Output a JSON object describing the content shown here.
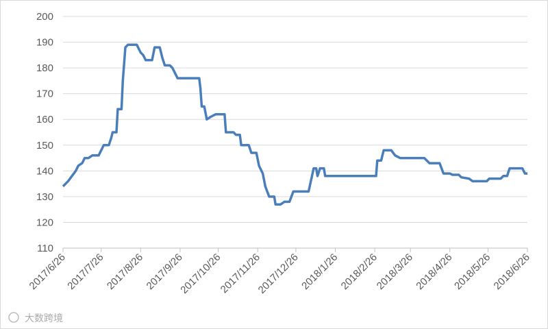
{
  "chart_data": {
    "type": "line",
    "x": [
      "2017/6/26",
      "2017/6/28",
      "2017/6/30",
      "2017/7/3",
      "2017/7/6",
      "2017/7/8",
      "2017/7/11",
      "2017/7/13",
      "2017/7/16",
      "2017/7/19",
      "2017/7/24",
      "2017/7/26",
      "2017/7/28",
      "2017/8/1",
      "2017/8/3",
      "2017/8/4",
      "2017/8/7",
      "2017/8/8",
      "2017/8/11",
      "2017/8/12",
      "2017/8/14",
      "2017/8/16",
      "2017/8/23",
      "2017/8/26",
      "2017/8/28",
      "2017/8/30",
      "2017/9/4",
      "2017/9/6",
      "2017/9/10",
      "2017/9/12",
      "2017/9/14",
      "2017/9/18",
      "2017/9/20",
      "2017/9/22",
      "2017/9/24",
      "2017/10/11",
      "2017/10/12",
      "2017/10/13",
      "2017/10/15",
      "2017/10/17",
      "2017/10/20",
      "2017/10/24",
      "2017/10/31",
      "2017/11/1",
      "2017/11/7",
      "2017/11/9",
      "2017/11/12",
      "2017/11/13",
      "2017/11/19",
      "2017/11/21",
      "2017/11/25",
      "2017/11/27",
      "2017/11/30",
      "2017/12/2",
      "2017/12/5",
      "2017/12/9",
      "2017/12/10",
      "2017/12/14",
      "2017/12/17",
      "2017/12/21",
      "2017/12/24",
      "2018/1/5",
      "2018/1/9",
      "2018/1/11",
      "2018/1/12",
      "2018/1/14",
      "2018/1/17",
      "2018/1/18",
      "2018/2/27",
      "2018/2/28",
      "2018/3/3",
      "2018/3/5",
      "2018/3/11",
      "2018/3/14",
      "2018/3/18",
      "2018/4/6",
      "2018/4/10",
      "2018/4/18",
      "2018/4/21",
      "2018/4/26",
      "2018/4/28",
      "2018/5/3",
      "2018/5/5",
      "2018/5/11",
      "2018/5/14",
      "2018/5/25",
      "2018/5/27",
      "2018/6/5",
      "2018/6/7",
      "2018/6/10",
      "2018/6/12",
      "2018/6/22",
      "2018/6/24",
      "2018/6/26"
    ],
    "values": [
      134,
      135,
      136,
      138,
      140,
      142,
      143,
      145,
      145,
      146,
      146,
      148,
      150,
      150,
      153,
      155,
      155,
      164,
      164,
      175,
      188,
      189,
      189,
      186,
      185,
      183,
      183,
      188,
      188,
      184,
      181,
      181,
      180,
      178,
      176,
      176,
      172,
      165,
      165,
      160,
      161,
      162,
      162,
      155,
      155,
      154,
      154,
      150,
      150,
      147,
      147,
      142,
      139,
      134,
      130,
      130,
      127,
      127,
      128,
      128,
      132,
      132,
      141,
      141,
      138,
      141,
      141,
      138,
      138,
      144,
      144,
      148,
      148,
      146,
      145,
      145,
      143,
      143,
      139,
      139,
      138.5,
      138.5,
      137.5,
      137,
      136,
      136,
      137,
      137,
      138,
      138,
      141,
      141,
      139,
      139
    ],
    "color": "#4a7ebb",
    "xlim": [
      "2017/6/26",
      "2018/6/26"
    ],
    "xticks": [
      "2017/6/26",
      "2017/7/26",
      "2017/8/26",
      "2017/9/26",
      "2017/10/26",
      "2017/11/26",
      "2017/12/26",
      "2018/1/26",
      "2018/2/26",
      "2018/3/26",
      "2018/4/26",
      "2018/5/26",
      "2018/6/26"
    ],
    "ylim": [
      110,
      200
    ],
    "yticks": [
      110,
      120,
      130,
      140,
      150,
      160,
      170,
      180,
      190,
      200
    ],
    "grid": true,
    "watermark": "大数跨境"
  }
}
